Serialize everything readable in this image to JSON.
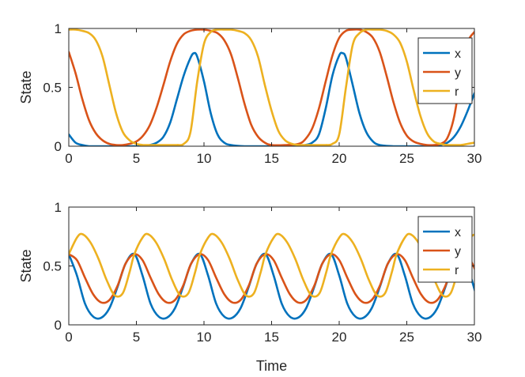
{
  "chart_data": [
    {
      "type": "line",
      "xlabel": "",
      "ylabel": "State",
      "xlim": [
        0,
        30
      ],
      "ylim": [
        0,
        1
      ],
      "xticks": [
        0,
        5,
        10,
        15,
        20,
        25,
        30
      ],
      "yticks": [
        0,
        0.5,
        1
      ],
      "ytick_labels": [
        "0",
        "0.5",
        "1"
      ],
      "legend_position": "top-right",
      "grid": false,
      "series": [
        {
          "name": "x",
          "color": "#0072BD",
          "x": [
            0,
            0.5,
            1,
            1.5,
            2,
            3,
            4,
            5,
            6,
            6.5,
            7,
            7.5,
            8,
            8.5,
            9,
            9.25,
            9.5,
            10,
            10.5,
            11,
            11.5,
            12,
            13,
            14,
            15,
            16,
            17,
            17.5,
            18,
            18.5,
            19,
            19.5,
            20,
            20.25,
            20.5,
            21,
            21.5,
            22,
            22.5,
            23,
            24,
            25,
            26,
            27,
            27.5,
            28,
            28.5,
            29,
            29.5,
            30
          ],
          "values": [
            0.1,
            0.03,
            0.01,
            0,
            0,
            0,
            0,
            0,
            0.01,
            0.03,
            0.08,
            0.2,
            0.4,
            0.6,
            0.75,
            0.79,
            0.76,
            0.55,
            0.28,
            0.1,
            0.03,
            0.01,
            0,
            0,
            0,
            0,
            0,
            0.01,
            0.03,
            0.1,
            0.32,
            0.6,
            0.77,
            0.79,
            0.75,
            0.52,
            0.28,
            0.12,
            0.04,
            0.01,
            0,
            0,
            0,
            0,
            0.01,
            0.03,
            0.08,
            0.17,
            0.3,
            0.45
          ]
        },
        {
          "name": "y",
          "color": "#D95319",
          "x": [
            0,
            0.5,
            1,
            1.5,
            2,
            2.5,
            3,
            3.5,
            4,
            4.5,
            5,
            5.5,
            6,
            6.5,
            7,
            7.5,
            8,
            8.5,
            9,
            9.5,
            10,
            10.5,
            11,
            11.5,
            12,
            12.5,
            13,
            13.5,
            14,
            14.5,
            15,
            16,
            17,
            17.5,
            18,
            18.5,
            19,
            19.5,
            20,
            20.5,
            21,
            21.5,
            22,
            22.5,
            23,
            23.5,
            24,
            24.5,
            25,
            25.5,
            26,
            26.5,
            27,
            27.5,
            28,
            28.5,
            29,
            29.5,
            30
          ],
          "values": [
            0.8,
            0.62,
            0.4,
            0.22,
            0.11,
            0.05,
            0.02,
            0.01,
            0.01,
            0.02,
            0.04,
            0.09,
            0.18,
            0.33,
            0.52,
            0.72,
            0.87,
            0.95,
            0.98,
            0.99,
            0.99,
            0.98,
            0.96,
            0.9,
            0.78,
            0.58,
            0.36,
            0.18,
            0.08,
            0.03,
            0.01,
            0.01,
            0.02,
            0.06,
            0.15,
            0.32,
            0.55,
            0.77,
            0.92,
            0.98,
            0.99,
            0.99,
            0.97,
            0.92,
            0.8,
            0.6,
            0.38,
            0.2,
            0.09,
            0.04,
            0.02,
            0.01,
            0.01,
            0.02,
            0.07,
            0.25,
            0.6,
            0.88,
            0.97
          ]
        },
        {
          "name": "r",
          "color": "#EDB120",
          "x": [
            0,
            0.5,
            1,
            1.5,
            2,
            2.5,
            3,
            3.5,
            4,
            4.5,
            5,
            5.5,
            6,
            6.5,
            7,
            7.5,
            8,
            8.5,
            9,
            9.5,
            10,
            10.5,
            11,
            11.5,
            12,
            12.5,
            13,
            13.5,
            14,
            14.5,
            15,
            15.5,
            16,
            16.5,
            17,
            17.5,
            18,
            18.5,
            19,
            19.5,
            20,
            20.5,
            21,
            21.5,
            22,
            22.5,
            23,
            23.5,
            24,
            24.5,
            25,
            25.5,
            26,
            26.5,
            27,
            27.5,
            28,
            28.5,
            29,
            29.5,
            30
          ],
          "values": [
            0.99,
            0.99,
            0.98,
            0.96,
            0.9,
            0.76,
            0.52,
            0.28,
            0.12,
            0.05,
            0.02,
            0.01,
            0.01,
            0.01,
            0.01,
            0.01,
            0.01,
            0.02,
            0.12,
            0.55,
            0.87,
            0.97,
            0.99,
            0.99,
            0.99,
            0.98,
            0.96,
            0.9,
            0.76,
            0.52,
            0.3,
            0.13,
            0.05,
            0.02,
            0.01,
            0.01,
            0.01,
            0.01,
            0.01,
            0.02,
            0.1,
            0.5,
            0.86,
            0.96,
            0.99,
            0.99,
            0.99,
            0.98,
            0.95,
            0.88,
            0.72,
            0.48,
            0.26,
            0.11,
            0.04,
            0.02,
            0.01,
            0.01,
            0.01,
            0.02,
            0.03
          ]
        }
      ]
    },
    {
      "type": "line",
      "xlabel": "Time",
      "ylabel": "State",
      "xlim": [
        0,
        30
      ],
      "ylim": [
        0,
        1
      ],
      "xticks": [
        0,
        5,
        10,
        15,
        20,
        25,
        30
      ],
      "yticks": [
        0,
        0.5,
        1
      ],
      "ytick_labels": [
        "0",
        "0.5",
        "1"
      ],
      "legend_position": "top-right",
      "grid": false,
      "series": [
        {
          "name": "x",
          "color": "#0072BD",
          "period": 4.85,
          "x": [
            0,
            0.6,
            1.2,
            1.8,
            2.4,
            3.0,
            3.6,
            4.2,
            4.85
          ],
          "values": [
            0.6,
            0.42,
            0.18,
            0.07,
            0.06,
            0.14,
            0.32,
            0.52,
            0.6
          ]
        },
        {
          "name": "y",
          "color": "#D95319",
          "period": 4.85,
          "x": [
            0,
            0.6,
            1.2,
            1.8,
            2.4,
            3.0,
            3.6,
            4.2,
            4.85
          ],
          "values": [
            0.6,
            0.55,
            0.4,
            0.26,
            0.19,
            0.21,
            0.33,
            0.52,
            0.6
          ]
        },
        {
          "name": "r",
          "color": "#EDB120",
          "period": 4.85,
          "x": [
            0,
            0.6,
            1.0,
            1.6,
            2.2,
            2.8,
            3.4,
            4.0,
            4.5,
            4.85
          ],
          "values": [
            0.6,
            0.74,
            0.77,
            0.7,
            0.56,
            0.38,
            0.25,
            0.27,
            0.45,
            0.6
          ]
        }
      ]
    }
  ]
}
